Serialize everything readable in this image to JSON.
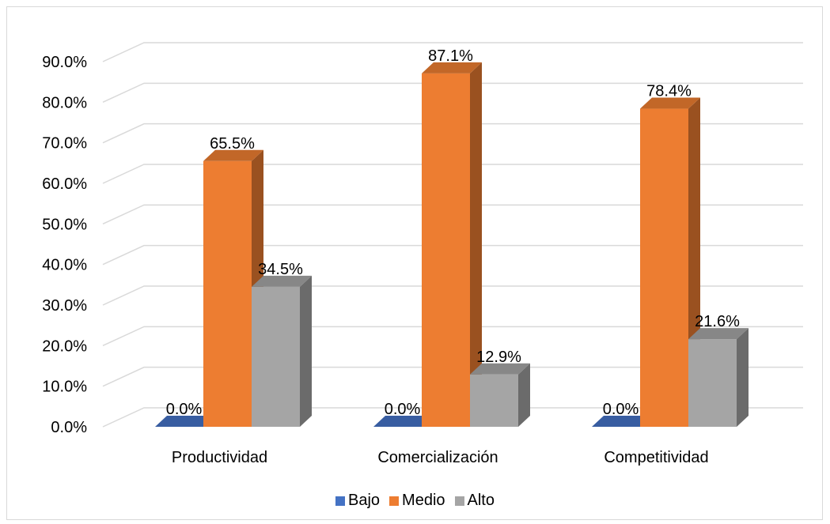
{
  "chart_data": {
    "type": "bar",
    "subtype": "3d-clustered-column",
    "title": "",
    "xlabel": "",
    "ylabel": "",
    "categories": [
      "Productividad",
      "Comercialización",
      "Competitividad"
    ],
    "series": [
      {
        "name": "Bajo",
        "values": [
          0.0,
          0.0,
          0.0
        ],
        "labels": [
          "0.0%",
          "0.0%",
          "0.0%"
        ],
        "color": "#4472C4"
      },
      {
        "name": "Medio",
        "values": [
          65.5,
          87.1,
          78.4
        ],
        "labels": [
          "65.5%",
          "87.1%",
          "78.4%"
        ],
        "color": "#ED7D31"
      },
      {
        "name": "Alto",
        "values": [
          34.5,
          12.9,
          21.6
        ],
        "labels": [
          "34.5%",
          "12.9%",
          "21.6%"
        ],
        "color": "#A5A5A5"
      }
    ],
    "ylim": [
      0,
      90
    ],
    "yticks": [
      "0.0%",
      "10.0%",
      "20.0%",
      "30.0%",
      "40.0%",
      "50.0%",
      "60.0%",
      "70.0%",
      "80.0%",
      "90.0%"
    ],
    "ytick_values": [
      0,
      10,
      20,
      30,
      40,
      50,
      60,
      70,
      80,
      90
    ],
    "grid": true,
    "legend_position": "bottom"
  }
}
